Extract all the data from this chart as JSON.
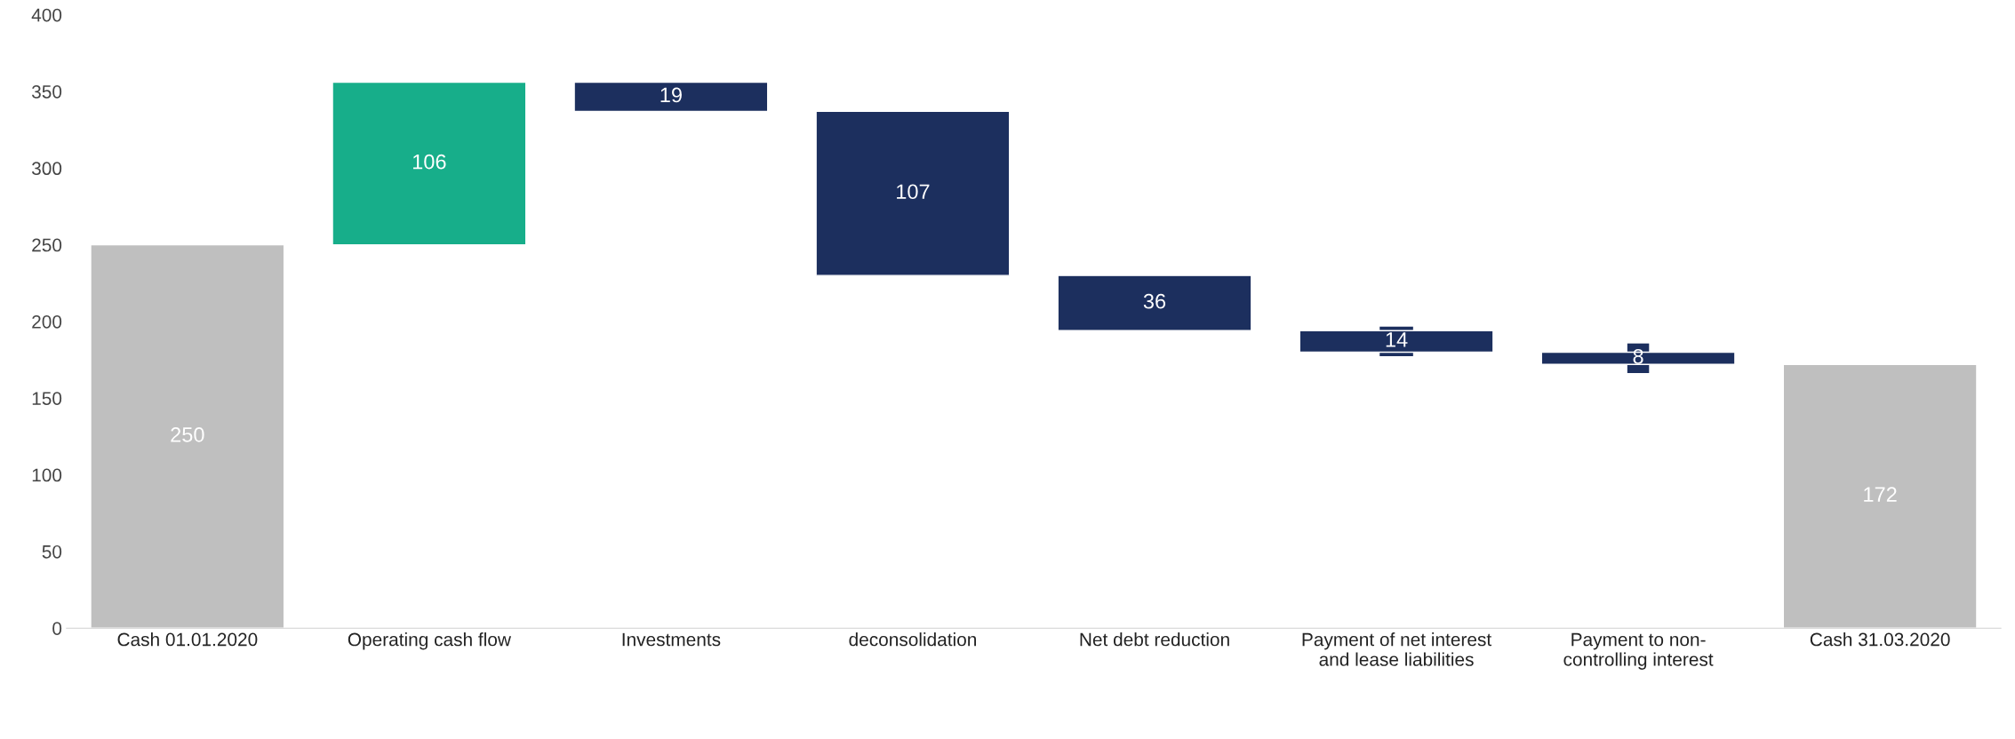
{
  "chart_data": {
    "type": "bar",
    "categories": [
      "Cash 01.01.2020",
      "Operating cash flow",
      "Investments",
      "deconsolidation",
      "Net debt reduction",
      "Payment of net interest and lease liabilities",
      "Payment to non-controlling interest",
      "Cash 31.03.2020"
    ],
    "values": [
      250,
      106,
      19,
      107,
      36,
      14,
      8,
      172
    ],
    "base": [
      0,
      250,
      337,
      230,
      194,
      180,
      172,
      0
    ],
    "colors": [
      "#bfbfbf",
      "#17ae8a",
      "#1c2f5e",
      "#1c2f5e",
      "#1c2f5e",
      "#1c2f5e",
      "#1c2f5e",
      "#bfbfbf"
    ],
    "ylim": [
      0,
      400
    ],
    "yticks": [
      0,
      50,
      100,
      150,
      200,
      250,
      300,
      350,
      400
    ],
    "data_labels": true,
    "grid": false,
    "legend": false
  }
}
